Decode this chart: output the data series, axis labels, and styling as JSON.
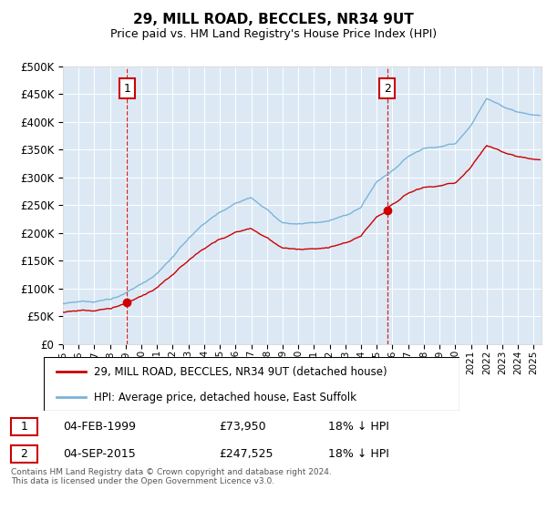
{
  "title": "29, MILL ROAD, BECCLES, NR34 9UT",
  "subtitle": "Price paid vs. HM Land Registry's House Price Index (HPI)",
  "plot_bg_color": "#dce9f5",
  "hpi_color": "#7ab4d8",
  "price_color": "#cc0000",
  "dashed_color": "#cc0000",
  "ylim": [
    0,
    500000
  ],
  "yticks": [
    0,
    50000,
    100000,
    150000,
    200000,
    250000,
    300000,
    350000,
    400000,
    450000,
    500000
  ],
  "xlim_start": 1995.0,
  "xlim_end": 2025.5,
  "xticks": [
    1995,
    1996,
    1997,
    1998,
    1999,
    2000,
    2001,
    2002,
    2003,
    2004,
    2005,
    2006,
    2007,
    2008,
    2009,
    2010,
    2011,
    2012,
    2013,
    2014,
    2015,
    2016,
    2017,
    2018,
    2019,
    2020,
    2021,
    2022,
    2023,
    2024,
    2025
  ],
  "t1_year": 1999.083,
  "t1_price": 73950,
  "t2_year": 2015.667,
  "t2_price": 247525,
  "annotation1_label": "1",
  "annotation2_label": "2",
  "annotation1_date": "04-FEB-1999",
  "annotation1_price": "£73,950",
  "annotation1_hpi": "18% ↓ HPI",
  "annotation2_date": "04-SEP-2015",
  "annotation2_price": "£247,525",
  "annotation2_hpi": "18% ↓ HPI",
  "legend_label1": "29, MILL ROAD, BECCLES, NR34 9UT (detached house)",
  "legend_label2": "HPI: Average price, detached house, East Suffolk",
  "footer": "Contains HM Land Registry data © Crown copyright and database right 2024.\nThis data is licensed under the Open Government Licence v3.0.",
  "hpi_anchors_x": [
    1995,
    1996,
    1997,
    1998,
    1999,
    2000,
    2001,
    2002,
    2003,
    2004,
    2005,
    2006,
    2007,
    2008,
    2009,
    2010,
    2011,
    2012,
    2013,
    2014,
    2015,
    2016,
    2017,
    2018,
    2019,
    2020,
    2021,
    2022,
    2023,
    2024,
    2025
  ],
  "hpi_anchors_y": [
    73000,
    74000,
    77000,
    82000,
    92000,
    108000,
    128000,
    158000,
    190000,
    218000,
    238000,
    256000,
    268000,
    248000,
    222000,
    220000,
    222000,
    225000,
    232000,
    248000,
    295000,
    315000,
    340000,
    355000,
    358000,
    362000,
    395000,
    445000,
    430000,
    420000,
    415000
  ]
}
